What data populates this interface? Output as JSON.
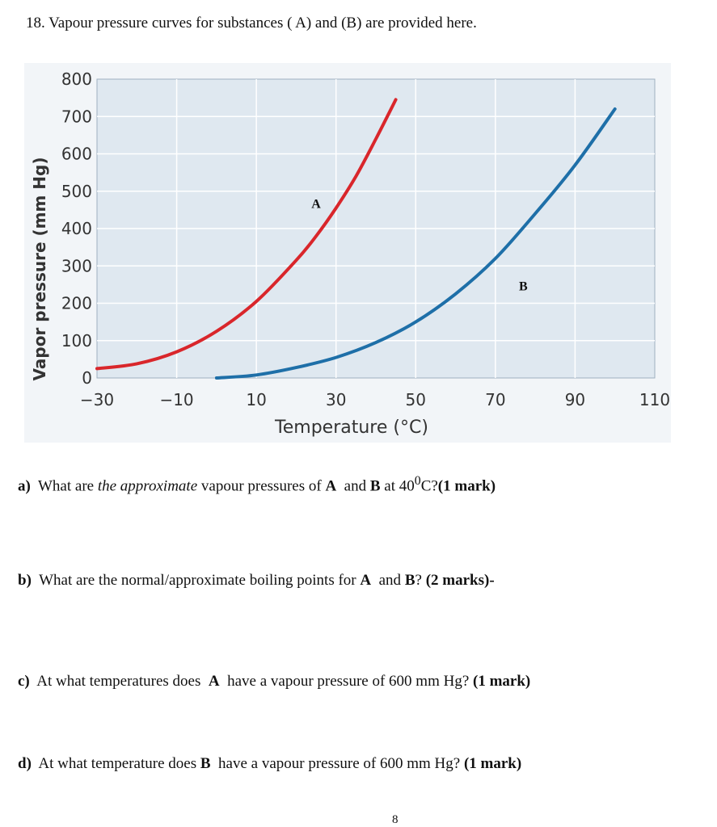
{
  "page": {
    "question_title": "18. Vapour pressure curves for substances ( A) and (B) are provided here.",
    "page_number": "8"
  },
  "questions": {
    "a": {
      "label": "a)",
      "pre": "What are",
      "italic": "the approximate",
      "mid": "vapour pressures of",
      "A": "A",
      "and": "and",
      "B": "B",
      "post": "at 40",
      "sup": "0",
      "post2": "C?",
      "marks": "(1 mark)"
    },
    "b": {
      "label": "b)",
      "pre": "What are the normal/approximate boiling points  for",
      "A": "A",
      "and": "and",
      "B": "B",
      "post": "?",
      "marks": "(2 marks)-"
    },
    "c": {
      "label": "c)",
      "pre": "At what temperatures does",
      "A": "A",
      "post": "have a vapour pressure of 600 mm Hg?",
      "marks": "(1 mark)"
    },
    "d": {
      "label": "d)",
      "pre": "At what temperature does",
      "B": "B",
      "post": "have a vapour pressure of 600 mm Hg?",
      "marks": "(1 mark)"
    }
  },
  "chart_data": {
    "type": "line",
    "title": "",
    "xlabel": "Temperature (°C)",
    "ylabel": "Vapor pressure (mm Hg)",
    "xlim": [
      -30,
      110
    ],
    "ylim": [
      0,
      800
    ],
    "x_ticks": [
      "−30",
      "−10",
      "10",
      "30",
      "50",
      "70",
      "90",
      "110"
    ],
    "y_ticks": [
      "0",
      "100",
      "200",
      "300",
      "400",
      "500",
      "600",
      "700",
      "800"
    ],
    "grid": true,
    "series": [
      {
        "name": "A",
        "color": "#d9262b",
        "x": [
          -30,
          -20,
          -10,
          0,
          10,
          20,
          25,
          30,
          35,
          40,
          45
        ],
        "y": [
          25,
          38,
          70,
          125,
          205,
          315,
          380,
          455,
          540,
          640,
          745
        ]
      },
      {
        "name": "B",
        "color": "#1e6fa8",
        "x": [
          0,
          10,
          20,
          30,
          40,
          50,
          60,
          70,
          80,
          90,
          100
        ],
        "y": [
          0,
          8,
          28,
          55,
          95,
          150,
          225,
          320,
          440,
          570,
          720
        ]
      }
    ]
  }
}
